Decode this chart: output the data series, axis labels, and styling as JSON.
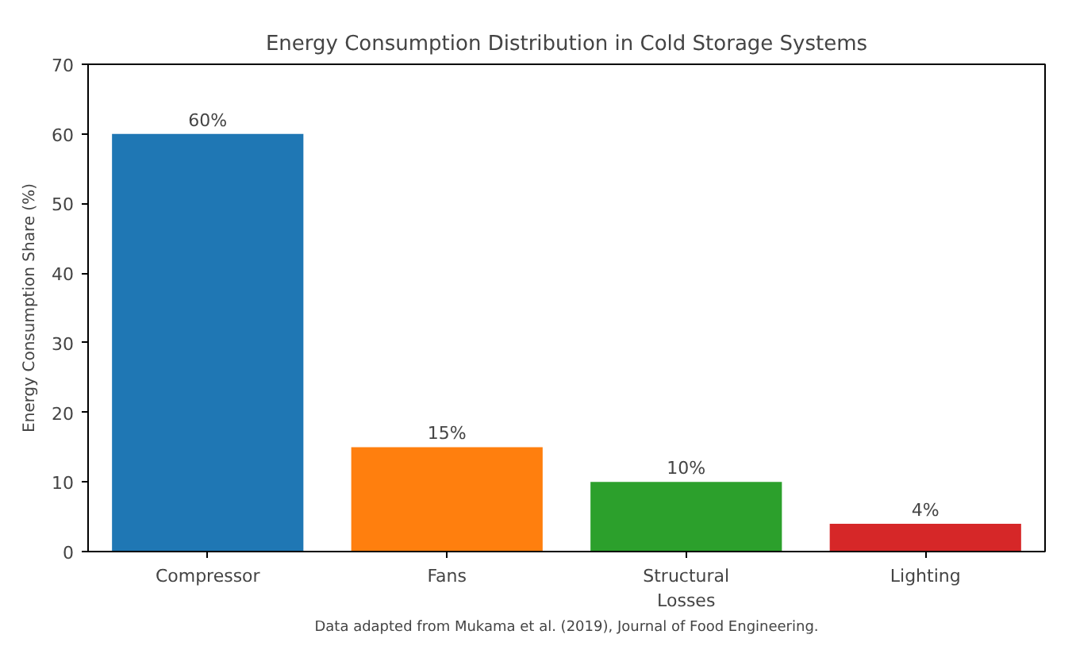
{
  "chart_data": {
    "type": "bar",
    "title": "Energy Consumption Distribution in Cold Storage Systems",
    "ylabel": "Energy Consumption Share (%)",
    "categories": [
      "Compressor",
      "Fans",
      "Structural\nLosses",
      "Lighting"
    ],
    "values": [
      60,
      15,
      10,
      4
    ],
    "colors": [
      "#1f77b4",
      "#ff7f0e",
      "#2ca02c",
      "#d62728"
    ],
    "value_labels": [
      "60%",
      "15%",
      "10%",
      "4%"
    ],
    "ylim": [
      0,
      70
    ],
    "yticks": [
      0,
      10,
      20,
      30,
      40,
      50,
      60,
      70
    ],
    "grid": false,
    "annotations": [
      "Data adapted from Mukama et al. (2019), Journal of Food Engineering."
    ]
  }
}
